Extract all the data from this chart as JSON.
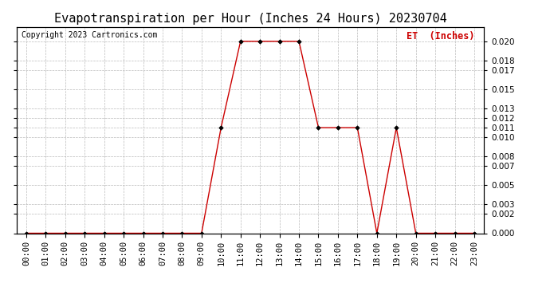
{
  "title": "Evapotranspiration per Hour (Inches 24 Hours) 20230704",
  "copyright": "Copyright 2023 Cartronics.com",
  "legend_label": "ET  (Inches)",
  "hours": [
    "00:00",
    "01:00",
    "02:00",
    "03:00",
    "04:00",
    "05:00",
    "06:00",
    "07:00",
    "08:00",
    "09:00",
    "10:00",
    "11:00",
    "12:00",
    "13:00",
    "14:00",
    "15:00",
    "16:00",
    "17:00",
    "18:00",
    "19:00",
    "20:00",
    "21:00",
    "22:00",
    "23:00"
  ],
  "et_values": [
    0.0,
    0.0,
    0.0,
    0.0,
    0.0,
    0.0,
    0.0,
    0.0,
    0.0,
    0.0,
    0.011,
    0.02,
    0.02,
    0.02,
    0.02,
    0.011,
    0.011,
    0.011,
    0.0,
    0.011,
    0.0,
    0.0,
    0.0,
    0.0
  ],
  "line_color": "#cc0000",
  "marker_color": "#000000",
  "grid_color": "#bbbbbb",
  "background_color": "#ffffff",
  "title_color": "#000000",
  "legend_color": "#cc0000",
  "copyright_color": "#000000",
  "ylim": [
    0.0,
    0.0215
  ],
  "yticks": [
    0.0,
    0.002,
    0.003,
    0.005,
    0.007,
    0.008,
    0.01,
    0.011,
    0.012,
    0.013,
    0.015,
    0.017,
    0.018,
    0.02
  ],
  "title_fontsize": 11,
  "label_fontsize": 8.5,
  "tick_fontsize": 7.5,
  "copyright_fontsize": 7
}
